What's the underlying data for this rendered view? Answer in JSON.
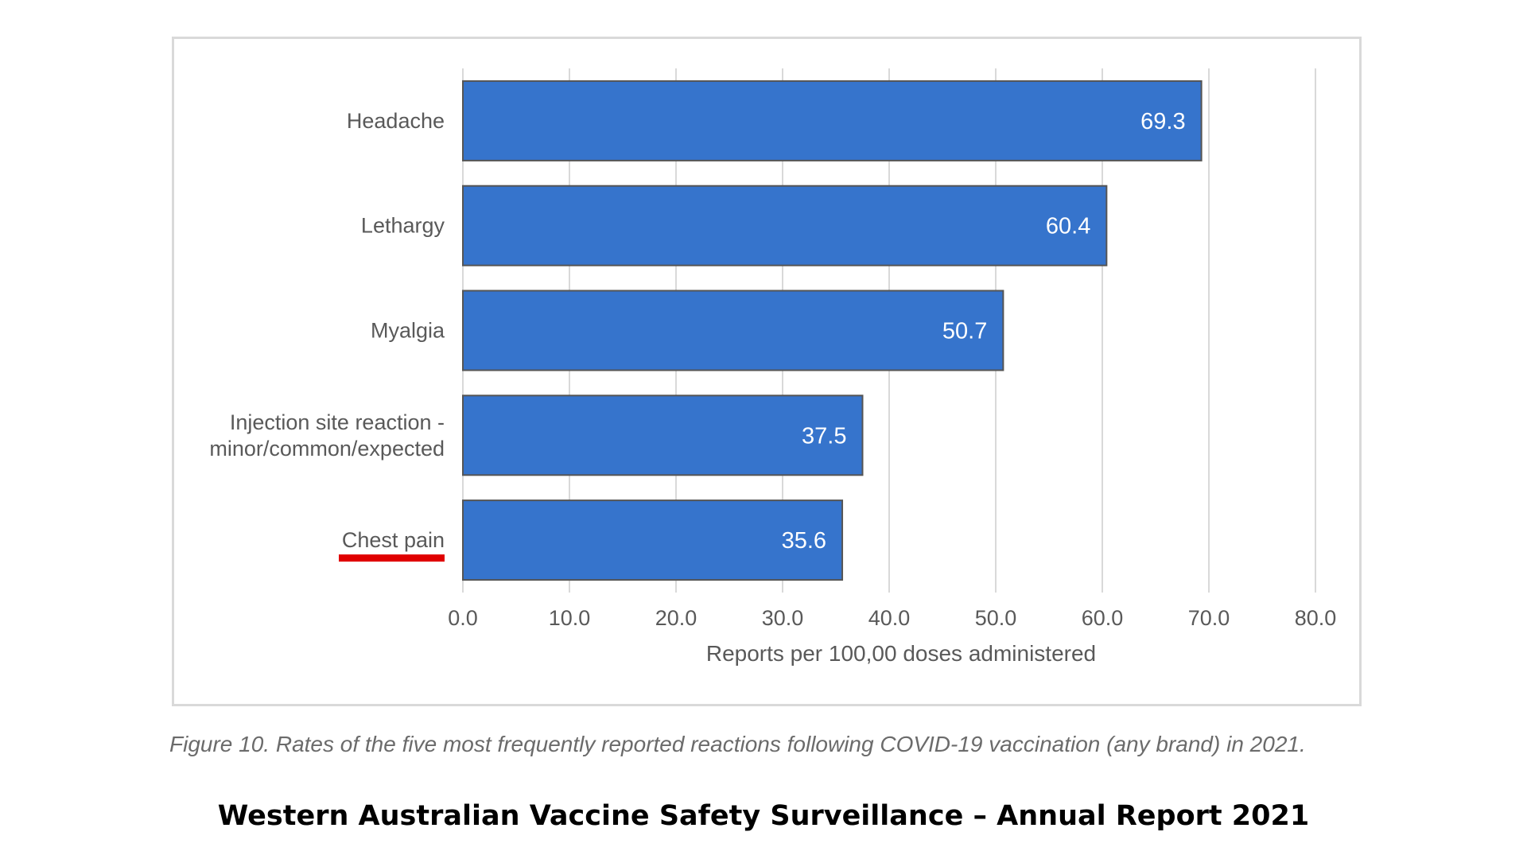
{
  "chart_data": {
    "type": "bar",
    "orientation": "horizontal",
    "categories": [
      "Headache",
      "Lethargy",
      "Myalgia",
      "Injection site reaction - minor/common/expected",
      "Chest pain"
    ],
    "category_lines": [
      [
        "Headache"
      ],
      [
        "Lethargy"
      ],
      [
        "Myalgia"
      ],
      [
        "Injection site reaction -",
        "minor/common/expected"
      ],
      [
        "Chest pain"
      ]
    ],
    "values": [
      69.3,
      60.4,
      50.7,
      37.5,
      35.6
    ],
    "data_labels": [
      "69.3",
      "60.4",
      "50.7",
      "37.5",
      "35.6"
    ],
    "xlabel": "Reports per 100,00 doses administered",
    "ylabel": "",
    "xlim": [
      0,
      80
    ],
    "xticks": [
      0,
      10,
      20,
      30,
      40,
      50,
      60,
      70,
      80
    ],
    "xtick_labels": [
      "0.0",
      "10.0",
      "20.0",
      "30.0",
      "40.0",
      "50.0",
      "60.0",
      "70.0",
      "80.0"
    ],
    "grid": true,
    "highlighted_category": "Chest pain",
    "colors": {
      "bar": "#3674cc",
      "bar_border": "#555555",
      "grid": "#d9d9d9",
      "axis_text": "#595959",
      "data_label": "#ffffff",
      "highlight_underline": "#e00000"
    }
  },
  "caption": "Figure 10. Rates of the five most frequently reported reactions following COVID-19 vaccination (any brand) in 2021.",
  "report_title": "Western Australian Vaccine Safety Surveillance – Annual Report 2021"
}
